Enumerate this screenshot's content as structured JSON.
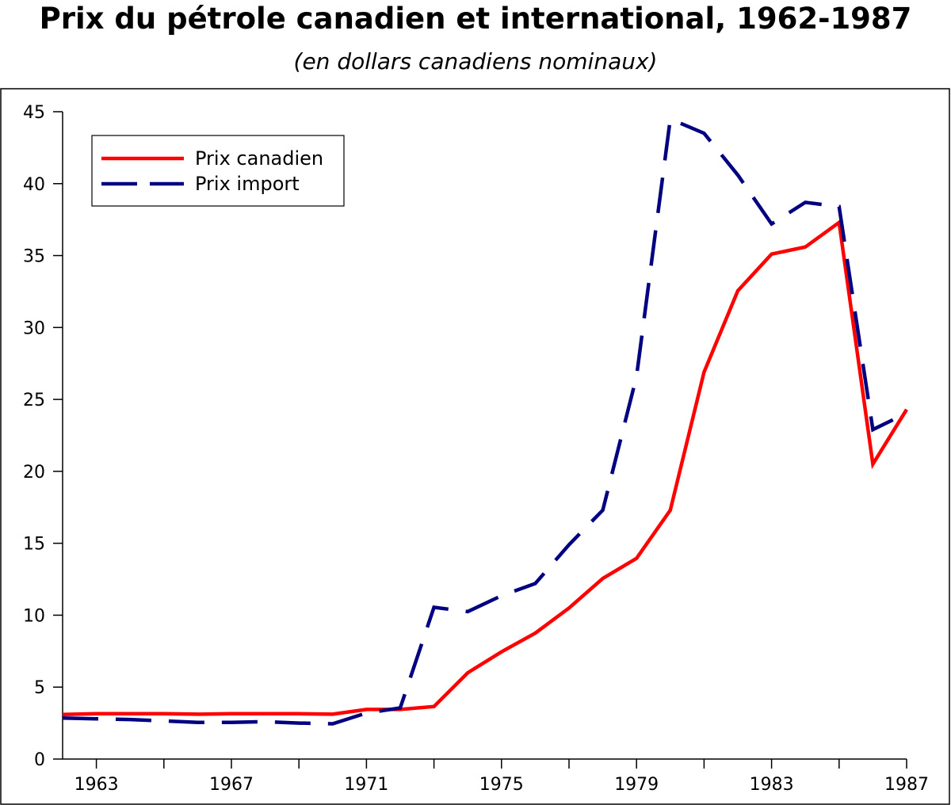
{
  "chart_data": {
    "type": "line",
    "title": "Prix du pétrole canadien et international, 1962-1987",
    "subtitle": "(en dollars canadiens nominaux)",
    "xlabel": "",
    "ylabel": "",
    "xlim": [
      1962,
      1987
    ],
    "ylim": [
      0,
      45
    ],
    "x": [
      1962,
      1963,
      1964,
      1965,
      1966,
      1967,
      1968,
      1969,
      1970,
      1971,
      1972,
      1973,
      1974,
      1975,
      1976,
      1977,
      1978,
      1979,
      1980,
      1981,
      1982,
      1983,
      1984,
      1985,
      1986,
      1987
    ],
    "x_tick_labels": [
      "1963",
      "1967",
      "1971",
      "1975",
      "1979",
      "1983",
      "1987"
    ],
    "x_tick_values": [
      1963,
      1967,
      1971,
      1975,
      1979,
      1983,
      1987
    ],
    "x_minor_ticks": [
      1963,
      1965,
      1967,
      1969,
      1971,
      1973,
      1975,
      1977,
      1979,
      1981,
      1983,
      1985,
      1987
    ],
    "y_tick_values": [
      0,
      5,
      10,
      15,
      20,
      25,
      30,
      35,
      40,
      45
    ],
    "y_tick_labels": [
      "0",
      "5",
      "10",
      "15",
      "20",
      "25",
      "30",
      "35",
      "40",
      "45"
    ],
    "grid": false,
    "legend_position": "top-left",
    "series": [
      {
        "name": "Prix canadien",
        "color": "#ff0000",
        "style": "solid",
        "values": [
          3.1,
          3.15,
          3.15,
          3.15,
          3.12,
          3.15,
          3.15,
          3.15,
          3.12,
          3.45,
          3.45,
          3.65,
          6.0,
          7.45,
          8.75,
          10.5,
          12.55,
          13.95,
          17.3,
          26.9,
          32.55,
          35.1,
          35.6,
          37.3,
          20.5,
          24.3
        ]
      },
      {
        "name": "Prix import",
        "color": "#000080",
        "style": "dashed",
        "values": [
          2.85,
          2.8,
          2.75,
          2.65,
          2.55,
          2.55,
          2.6,
          2.5,
          2.45,
          3.2,
          3.55,
          10.55,
          10.25,
          11.35,
          12.2,
          14.9,
          17.3,
          26.6,
          44.5,
          43.5,
          40.6,
          37.2,
          38.7,
          38.4,
          22.9,
          24.05
        ]
      }
    ]
  }
}
